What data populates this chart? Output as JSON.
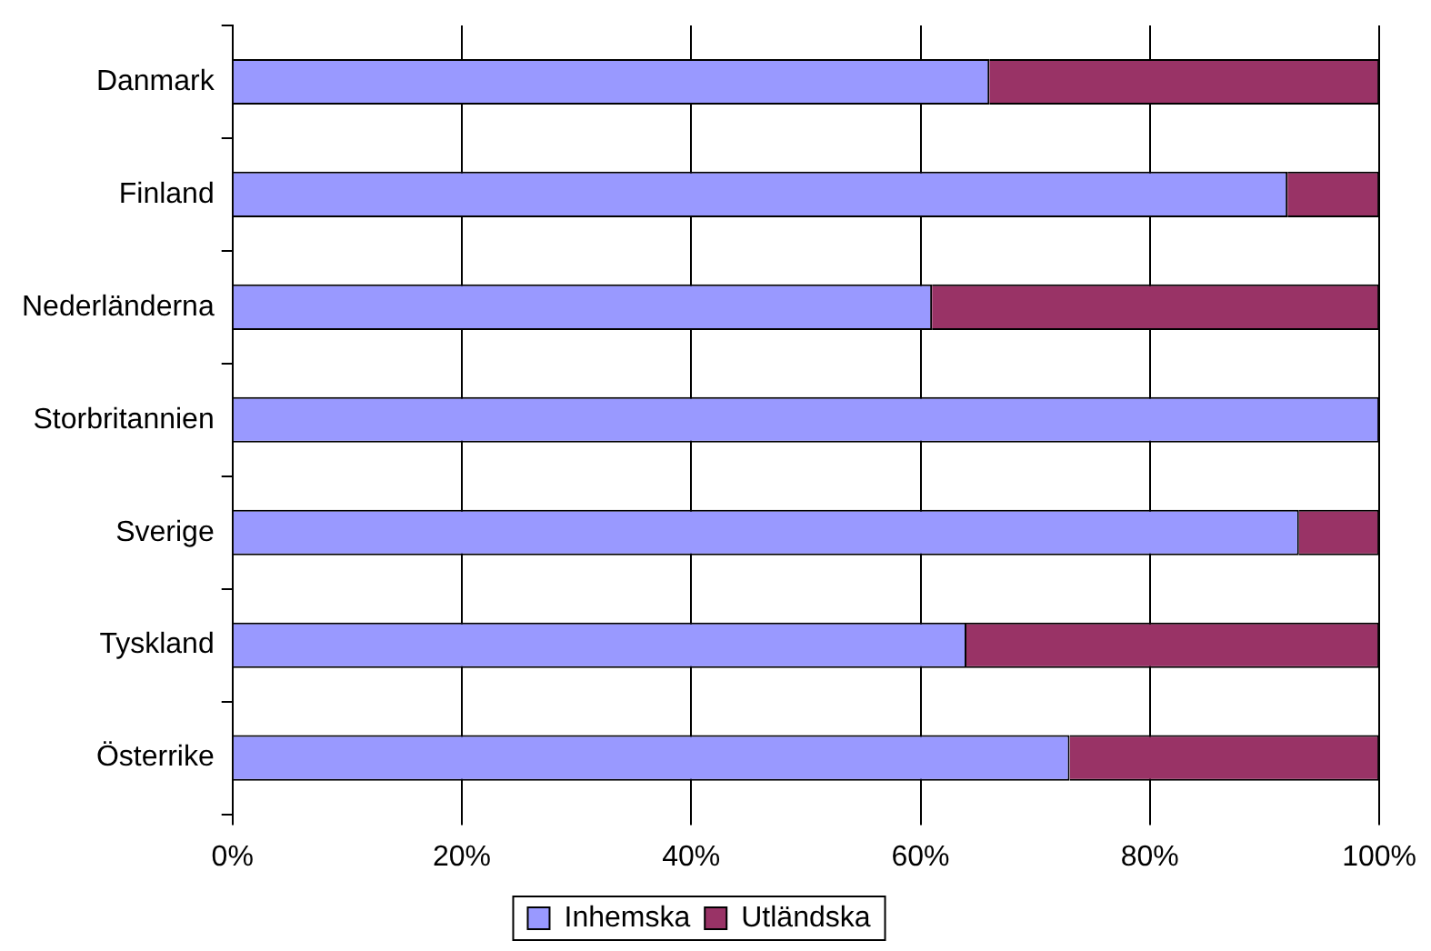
{
  "chart_data": {
    "type": "bar",
    "orientation": "horizontal",
    "stacked": true,
    "categories": [
      "Danmark",
      "Finland",
      "Nederländerna",
      "Storbritannien",
      "Sverige",
      "Tyskland",
      "Österrike"
    ],
    "series": [
      {
        "name": "Inhemska",
        "color": "#9999ff",
        "values": [
          66,
          92,
          61,
          100,
          93,
          64,
          73
        ]
      },
      {
        "name": "Utländska",
        "color": "#993366",
        "values": [
          34,
          8,
          39,
          0,
          7,
          36,
          27
        ]
      }
    ],
    "xlim": [
      0,
      100
    ],
    "xticks": [
      {
        "value": 0,
        "label": "0%"
      },
      {
        "value": 20,
        "label": "20%"
      },
      {
        "value": 40,
        "label": "40%"
      },
      {
        "value": 60,
        "label": "60%"
      },
      {
        "value": 80,
        "label": "80%"
      },
      {
        "value": 100,
        "label": "100%"
      }
    ],
    "grid": "x",
    "legend": "bottom"
  }
}
